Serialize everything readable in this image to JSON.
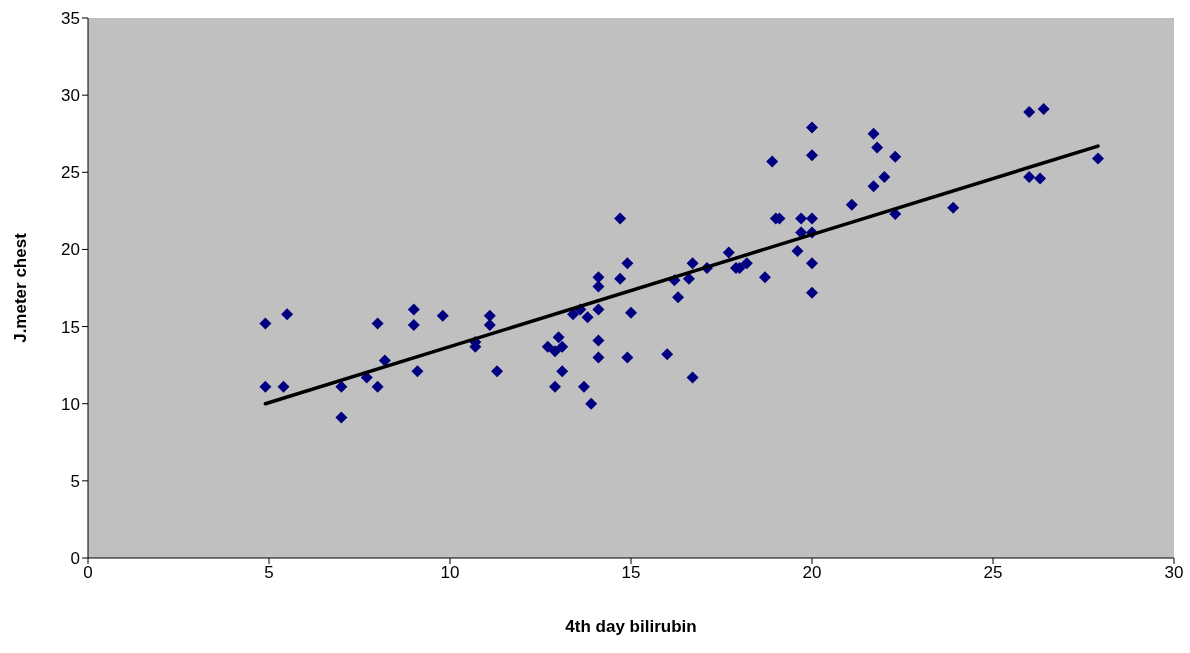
{
  "chart_data": {
    "type": "scatter",
    "xlabel": "4th day bilirubin",
    "ylabel": "J.meter chest",
    "xlim": [
      0,
      30
    ],
    "xticks": [
      0,
      5,
      10,
      15,
      20,
      25,
      30
    ],
    "ylim": [
      0,
      35
    ],
    "yticks": [
      0,
      5,
      10,
      15,
      20,
      25,
      30,
      35
    ],
    "grid": false,
    "legend": false,
    "series": [
      {
        "type": "scatter",
        "marker": "diamond",
        "color": "#000080",
        "x": [
          4.9,
          5.5,
          4.9,
          5.4,
          7.0,
          7.0,
          7.7,
          8.0,
          8.0,
          8.2,
          9.0,
          9.0,
          9.1,
          9.8,
          10.7,
          10.7,
          11.1,
          11.1,
          11.3,
          12.7,
          13.0,
          13.1,
          12.9,
          13.1,
          12.9,
          13.7,
          13.9,
          14.7,
          14.9,
          14.1,
          14.1,
          14.7,
          16.2,
          16.6,
          16.7,
          17.1,
          17.7,
          17.9,
          16.3,
          15.0,
          14.1,
          13.4,
          13.6,
          13.8,
          14.1,
          14.1,
          14.9,
          16.0,
          16.7,
          20.0,
          20.0,
          18.9,
          21.7,
          21.8,
          22.3,
          22.0,
          21.7,
          21.1,
          22.3,
          19.0,
          19.1,
          19.7,
          20.0,
          19.7,
          20.0,
          19.6,
          20.0,
          20.0,
          18.7,
          18.0,
          18.2,
          26.0,
          26.4,
          23.9,
          26.0,
          26.3,
          27.9
        ],
        "values": [
          15.2,
          15.8,
          11.1,
          11.1,
          11.1,
          9.1,
          11.7,
          11.1,
          15.2,
          12.8,
          16.1,
          15.1,
          12.1,
          15.7,
          14.0,
          13.7,
          15.7,
          15.1,
          12.1,
          13.7,
          14.3,
          13.7,
          13.4,
          12.1,
          11.1,
          11.1,
          10.0,
          22.0,
          19.1,
          18.2,
          17.6,
          18.1,
          18.0,
          18.1,
          19.1,
          18.8,
          19.8,
          18.8,
          16.9,
          15.9,
          16.1,
          15.8,
          16.1,
          15.6,
          14.1,
          13.0,
          13.0,
          13.2,
          11.7,
          27.9,
          26.1,
          25.7,
          27.5,
          26.6,
          26.0,
          24.7,
          24.1,
          22.9,
          22.3,
          22.0,
          22.0,
          22.0,
          22.0,
          21.1,
          21.1,
          19.9,
          19.1,
          17.2,
          18.2,
          18.8,
          19.1,
          28.9,
          29.1,
          22.7,
          24.7,
          24.6,
          25.9
        ]
      },
      {
        "type": "line",
        "color": "#000000",
        "x": [
          4.9,
          27.9
        ],
        "values": [
          10.0,
          26.7
        ]
      }
    ]
  }
}
